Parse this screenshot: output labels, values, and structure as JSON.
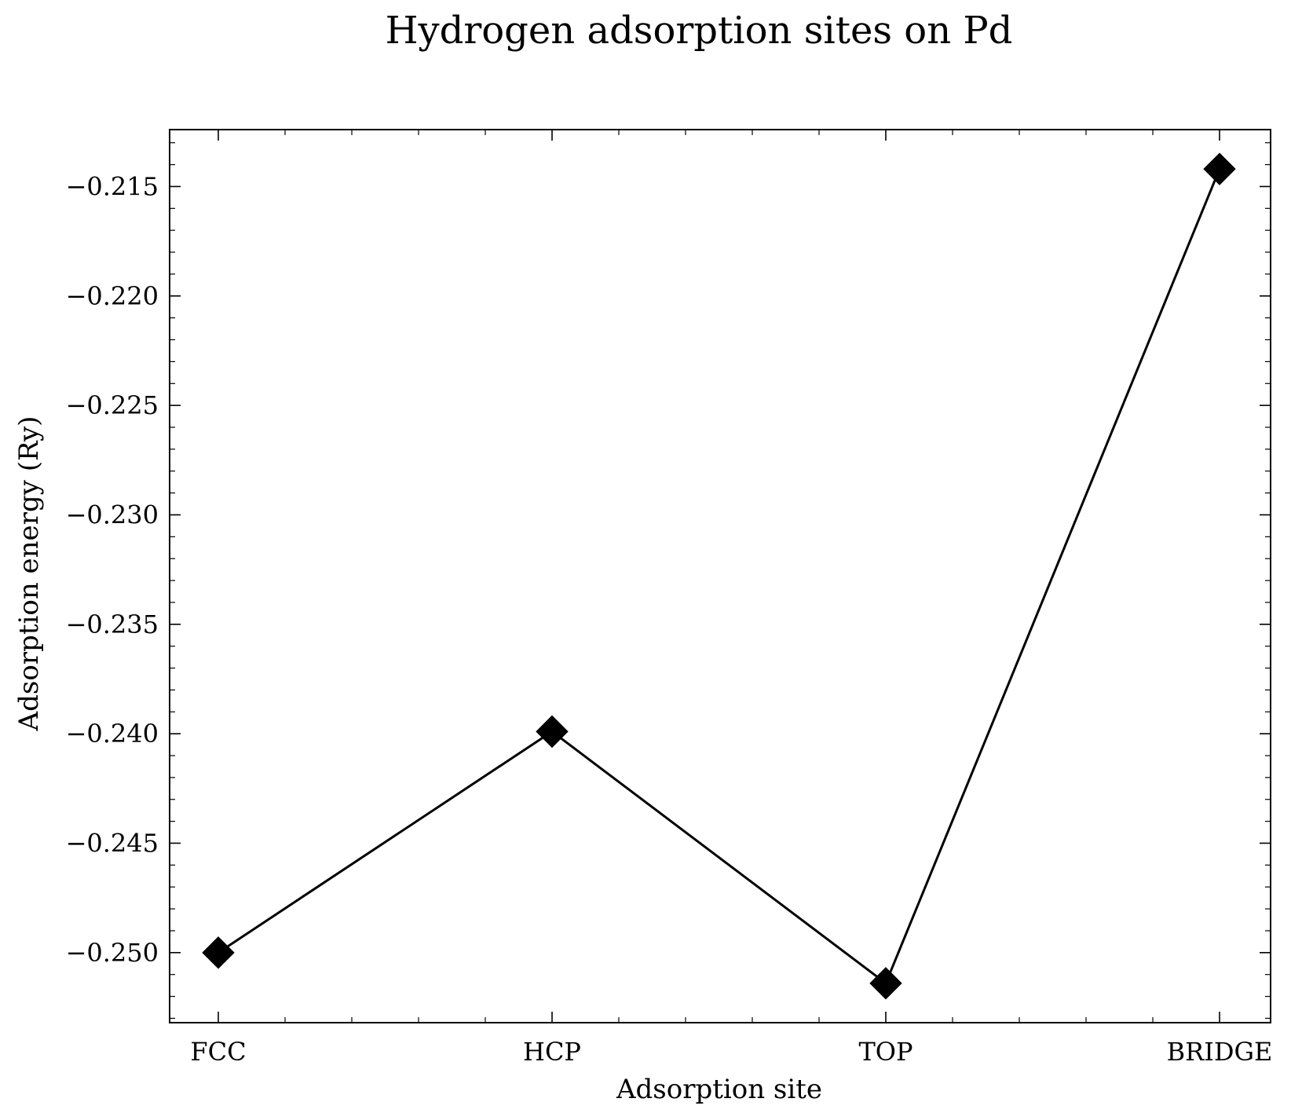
{
  "chart_data": {
    "type": "line",
    "title": "Hydrogen adsorption sites on Pd",
    "xlabel": "Adsorption site",
    "ylabel": "Adsorption energy (Ry)",
    "categories": [
      "FCC",
      "HCP",
      "TOP",
      "BRIDGE"
    ],
    "series": [
      {
        "values": [
          -0.25,
          -0.2399,
          -0.2514,
          -0.2142
        ],
        "color": "#000000",
        "marker": "diamond"
      }
    ],
    "ylim": [
      -0.2532,
      -0.2124
    ],
    "yticks": [
      -0.215,
      -0.22,
      -0.225,
      -0.23,
      -0.235,
      -0.24,
      -0.245,
      -0.25
    ],
    "ytick_labels": [
      "−0.215",
      "−0.220",
      "−0.225",
      "−0.230",
      "−0.235",
      "−0.240",
      "−0.245",
      "−0.250"
    ],
    "grid": false,
    "legend": "none"
  }
}
